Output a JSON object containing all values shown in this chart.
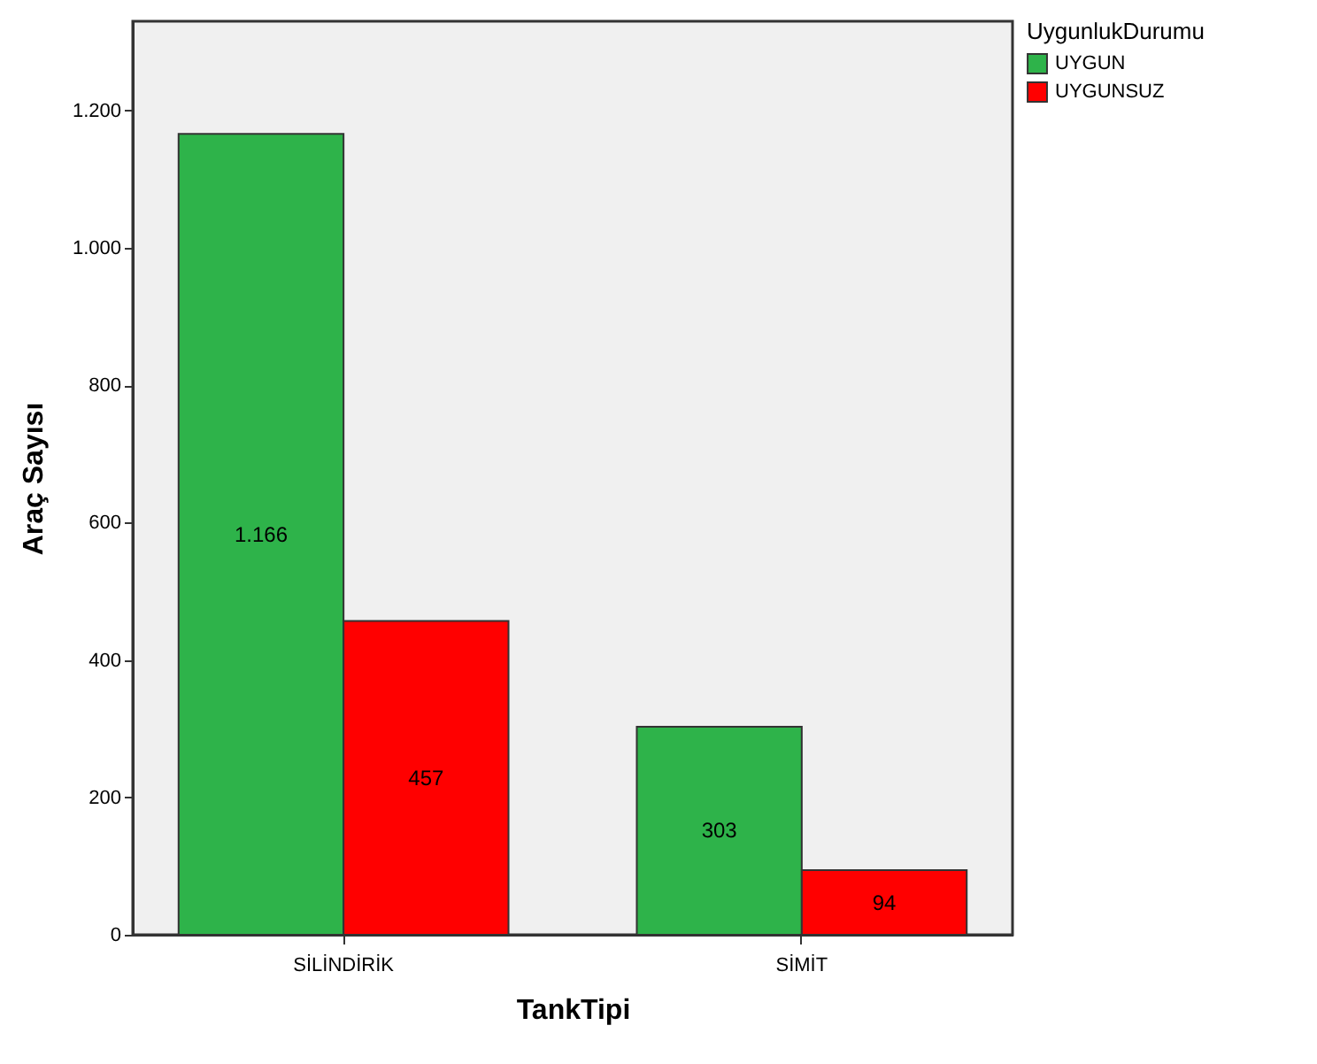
{
  "chart_data": {
    "type": "bar",
    "xlabel": "TankTipi",
    "ylabel": "Araç Sayısı",
    "legend_title": "UygunlukDurumu",
    "categories": [
      "SİLİNDİRİK",
      "SİMİT"
    ],
    "series": [
      {
        "name": "UYGUN",
        "color": "#2eb34a",
        "values": [
          1166,
          303
        ],
        "value_labels": [
          "1.166",
          "303"
        ]
      },
      {
        "name": "UYGUNSUZ",
        "color": "#ff0000",
        "values": [
          457,
          94
        ],
        "value_labels": [
          "457",
          "94"
        ]
      }
    ],
    "ylim": [
      0,
      1330
    ],
    "yticks": [
      0,
      200,
      400,
      600,
      800,
      {
        "value": 1000,
        "label": "1.000"
      },
      {
        "value": 1200,
        "label": "1.200"
      }
    ],
    "grid": false,
    "legend": "top right"
  }
}
